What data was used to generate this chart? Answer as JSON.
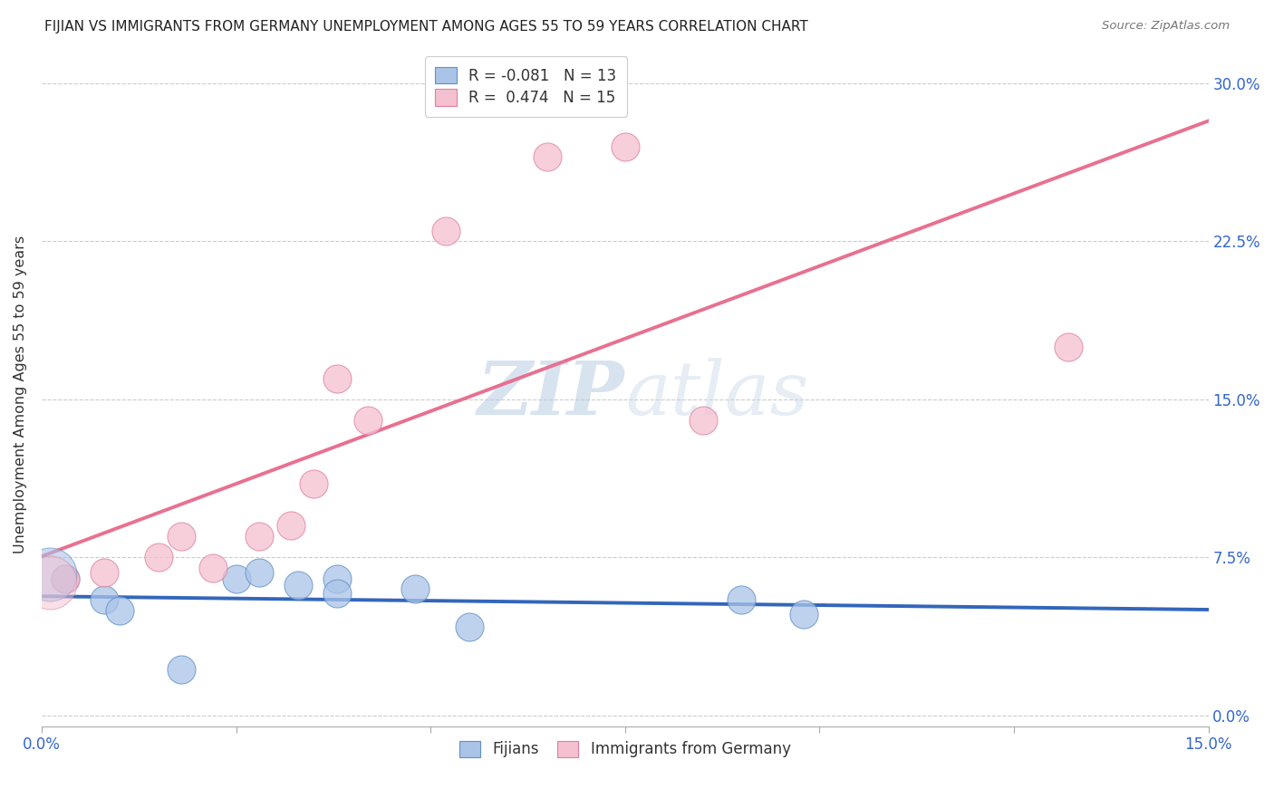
{
  "title": "FIJIAN VS IMMIGRANTS FROM GERMANY UNEMPLOYMENT AMONG AGES 55 TO 59 YEARS CORRELATION CHART",
  "source": "Source: ZipAtlas.com",
  "ylabel": "Unemployment Among Ages 55 to 59 years",
  "xlim": [
    0.0,
    0.15
  ],
  "ylim": [
    -0.005,
    0.31
  ],
  "fijian_color": "#aac4e8",
  "fijian_edge_color": "#6090c8",
  "fijian_line_color": "#3366bb",
  "germany_color": "#f5c0d0",
  "germany_edge_color": "#e080a0",
  "germany_line_color": "#e87090",
  "legend_text_color": "#3366cc",
  "r_neg_color": "#cc2222",
  "r_pos_color": "#3366cc",
  "watermark_color": "#ccd8ee",
  "fijian_R": "-0.081",
  "fijian_N": "13",
  "germany_R": "0.474",
  "germany_N": "15",
  "fijian_x": [
    0.003,
    0.008,
    0.01,
    0.018,
    0.025,
    0.028,
    0.033,
    0.038,
    0.038,
    0.048,
    0.055,
    0.09,
    0.098
  ],
  "fijian_y": [
    0.065,
    0.055,
    0.05,
    0.022,
    0.065,
    0.068,
    0.062,
    0.065,
    0.058,
    0.06,
    0.042,
    0.055,
    0.048
  ],
  "germany_x": [
    0.003,
    0.008,
    0.015,
    0.018,
    0.022,
    0.028,
    0.032,
    0.035,
    0.038,
    0.042,
    0.052,
    0.065,
    0.075,
    0.085,
    0.132
  ],
  "germany_y": [
    0.065,
    0.068,
    0.075,
    0.085,
    0.07,
    0.085,
    0.09,
    0.11,
    0.16,
    0.14,
    0.23,
    0.265,
    0.27,
    0.14,
    0.175
  ],
  "background_color": "#ffffff",
  "grid_color": "#cccccc",
  "ytick_vals": [
    0.0,
    0.075,
    0.15,
    0.225,
    0.3
  ],
  "ytick_labels": [
    "0.0%",
    "7.5%",
    "15.0%",
    "22.5%",
    "30.0%"
  ],
  "xtick_vals": [
    0.0,
    0.025,
    0.05,
    0.075,
    0.1,
    0.125,
    0.15
  ],
  "xtick_show": [
    0.0,
    0.15
  ]
}
